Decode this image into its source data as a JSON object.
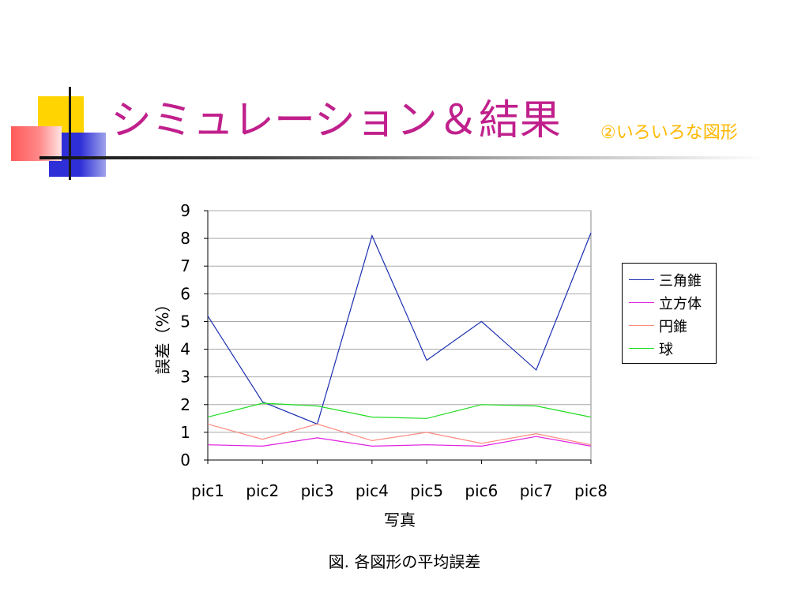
{
  "slide": {
    "title": "シミュレーション＆結果",
    "subtitle": "②いろいろな図形",
    "caption": "図. 各図形の平均誤差"
  },
  "colors": {
    "title": "#c0208c",
    "subtitle": "#ffb800"
  },
  "chart_data": {
    "type": "line",
    "categories": [
      "pic1",
      "pic2",
      "pic3",
      "pic4",
      "pic5",
      "pic6",
      "pic7",
      "pic8"
    ],
    "series": [
      {
        "name": "三角錐",
        "color": "#1a2eb0",
        "values": [
          5.2,
          2.1,
          1.3,
          8.1,
          3.6,
          5.0,
          3.25,
          8.2
        ]
      },
      {
        "name": "立方体",
        "color": "#e020e0",
        "values": [
          0.55,
          0.5,
          0.8,
          0.5,
          0.55,
          0.5,
          0.85,
          0.5
        ]
      },
      {
        "name": "円錐",
        "color": "#ff8a80",
        "values": [
          1.3,
          0.75,
          1.3,
          0.7,
          1.0,
          0.6,
          0.95,
          0.55
        ]
      },
      {
        "name": "球",
        "color": "#22dd22",
        "values": [
          1.55,
          2.05,
          1.95,
          1.55,
          1.5,
          2.0,
          1.95,
          1.55
        ]
      }
    ],
    "xlabel": "写真",
    "ylabel": "誤差（%）",
    "ylim": [
      0,
      9
    ],
    "yticks": [
      "0",
      "1",
      "2",
      "3",
      "4",
      "5",
      "6",
      "7",
      "8",
      "9"
    ],
    "grid": true,
    "legend_position": "right"
  }
}
